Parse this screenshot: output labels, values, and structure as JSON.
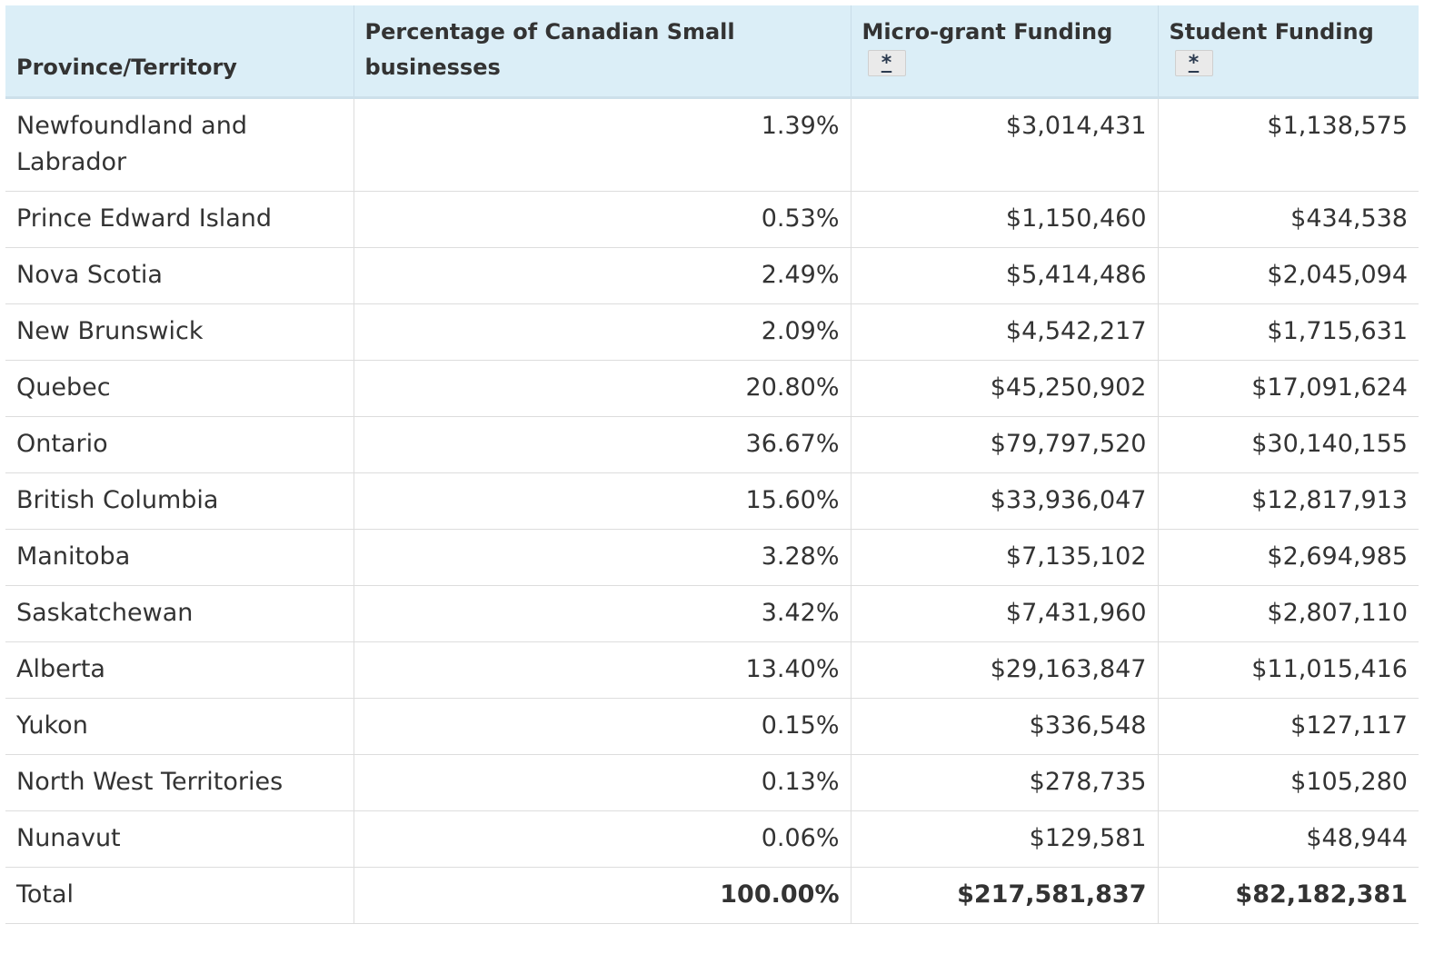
{
  "table": {
    "headers": {
      "province": "Province/Territory",
      "percentage": "Percentage of Canadian Small businesses",
      "micro_grant": "Micro-grant Funding",
      "micro_grant_note": "*",
      "student": "Student Funding",
      "student_note": "*"
    },
    "rows": [
      {
        "province": "Newfoundland and Labrador",
        "percentage": "1.39%",
        "micro_grant": "$3,014,431",
        "student": "$1,138,575"
      },
      {
        "province": "Prince Edward Island",
        "percentage": "0.53%",
        "micro_grant": "$1,150,460",
        "student": "$434,538"
      },
      {
        "province": "Nova Scotia",
        "percentage": "2.49%",
        "micro_grant": "$5,414,486",
        "student": "$2,045,094"
      },
      {
        "province": "New Brunswick",
        "percentage": "2.09%",
        "micro_grant": "$4,542,217",
        "student": "$1,715,631"
      },
      {
        "province": "Quebec",
        "percentage": "20.80%",
        "micro_grant": "$45,250,902",
        "student": "$17,091,624"
      },
      {
        "province": "Ontario",
        "percentage": "36.67%",
        "micro_grant": "$79,797,520",
        "student": "$30,140,155"
      },
      {
        "province": "British Columbia",
        "percentage": "15.60%",
        "micro_grant": "$33,936,047",
        "student": "$12,817,913"
      },
      {
        "province": "Manitoba",
        "percentage": "3.28%",
        "micro_grant": "$7,135,102",
        "student": "$2,694,985"
      },
      {
        "province": "Saskatchewan",
        "percentage": "3.42%",
        "micro_grant": "$7,431,960",
        "student": "$2,807,110"
      },
      {
        "province": "Alberta",
        "percentage": "13.40%",
        "micro_grant": "$29,163,847",
        "student": "$11,015,416"
      },
      {
        "province": "Yukon",
        "percentage": "0.15%",
        "micro_grant": "$336,548",
        "student": "$127,117"
      },
      {
        "province": "North West Territories",
        "percentage": "0.13%",
        "micro_grant": "$278,735",
        "student": "$105,280"
      },
      {
        "province": "Nunavut",
        "percentage": "0.06%",
        "micro_grant": "$129,581",
        "student": "$48,944"
      }
    ],
    "total": {
      "province": "Total",
      "percentage": "100.00%",
      "micro_grant": "$217,581,837",
      "student": "$82,182,381"
    }
  }
}
